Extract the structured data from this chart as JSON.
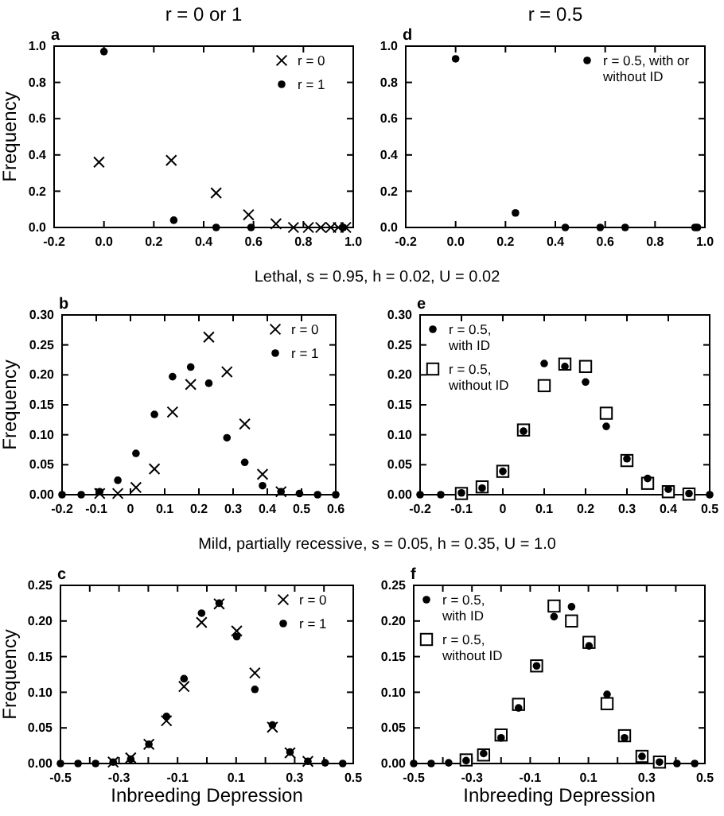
{
  "chart_data": [
    {
      "type": "scatter",
      "title": "r = 0 or 1",
      "annotations": [
        "a"
      ],
      "xlabel": "Lethal, s = 0.95, h = 0.02, U = 0.02",
      "ylabel": "Frequency",
      "legend": "top right",
      "xlim": [
        -0.2,
        1.0
      ],
      "xticks": [
        {
          "value": -0.2,
          "label": "-0.2"
        },
        {
          "value": 0,
          "label": "0.0"
        },
        {
          "value": 0.2,
          "label": "0.2"
        },
        {
          "value": 0.4,
          "label": "0.4"
        },
        {
          "value": 0.6,
          "label": "0.6"
        },
        {
          "value": 0.8,
          "label": "0.8"
        },
        {
          "value": 1.0,
          "label": "1.0"
        }
      ],
      "ylim": [
        0,
        1.0
      ],
      "yticks": [
        {
          "value": 0,
          "label": "0.0"
        },
        {
          "value": 0.2,
          "label": "0.2"
        },
        {
          "value": 0.4,
          "label": "0.4"
        },
        {
          "value": 0.6,
          "label": "0.6"
        },
        {
          "value": 0.8,
          "label": "0.8"
        },
        {
          "value": 1.0,
          "label": "1.0"
        }
      ],
      "series": [
        {
          "name": "r = 0",
          "color": "#000000",
          "marker": "cross",
          "x": [
            -0.02,
            0.27,
            0.45,
            0.58,
            0.69,
            0.76,
            0.82,
            0.87,
            0.91,
            0.94,
            0.97
          ],
          "values": [
            0.36,
            0.37,
            0.19,
            0.07,
            0.02,
            0,
            0,
            0,
            0,
            0,
            0
          ]
        },
        {
          "name": "r = 1",
          "color": "#000000",
          "marker": "circle",
          "x": [
            0,
            0.28,
            0.45,
            0.59,
            0.96
          ],
          "values": [
            0.97,
            0.04,
            0,
            0,
            0
          ]
        }
      ]
    },
    {
      "type": "scatter",
      "title": "r = 0.5",
      "annotations": [
        "d"
      ],
      "legend": "top right",
      "xlim": [
        -0.2,
        1.0
      ],
      "xticks": [
        {
          "value": -0.2,
          "label": "-0.2"
        },
        {
          "value": 0,
          "label": "0.0"
        },
        {
          "value": 0.2,
          "label": "0.2"
        },
        {
          "value": 0.4,
          "label": "0.4"
        },
        {
          "value": 0.6,
          "label": "0.6"
        },
        {
          "value": 0.8,
          "label": "0.8"
        },
        {
          "value": 1.0,
          "label": "1.0"
        }
      ],
      "ylim": [
        0,
        1.0
      ],
      "yticks": [
        {
          "value": 0,
          "label": "0.0"
        },
        {
          "value": 0.2,
          "label": "0.2"
        },
        {
          "value": 0.4,
          "label": "0.4"
        },
        {
          "value": 0.6,
          "label": "0.6"
        },
        {
          "value": 0.8,
          "label": "0.8"
        },
        {
          "value": 1.0,
          "label": "1.0"
        }
      ],
      "series": [
        {
          "name": "r = 0.5, with or without ID",
          "color": "#000000",
          "marker": "circle",
          "x": [
            0,
            0.24,
            0.44,
            0.58,
            0.68,
            0.96,
            0.97
          ],
          "values": [
            0.93,
            0.08,
            0,
            0,
            0,
            0,
            0
          ]
        }
      ]
    },
    {
      "type": "scatter",
      "annotations": [
        "b"
      ],
      "xlabel": "Mild, partially recessive, s = 0.05, h = 0.35, U = 1.0",
      "ylabel": "Frequency",
      "legend": "top right",
      "xlim": [
        -0.2,
        0.6
      ],
      "xticks": [
        -0.2,
        -0.1,
        0,
        0.1,
        0.2,
        0.3,
        0.4,
        0.5,
        0.6
      ],
      "ylim": [
        0,
        0.3
      ],
      "yticks": [
        {
          "value": 0,
          "label": "0.00"
        },
        {
          "value": 0.05,
          "label": "0.05"
        },
        {
          "value": 0.1,
          "label": "0.10"
        },
        {
          "value": 0.15,
          "label": "0.15"
        },
        {
          "value": 0.2,
          "label": "0.20"
        },
        {
          "value": 0.25,
          "label": "0.25"
        },
        {
          "value": 0.3,
          "label": "0.30"
        }
      ],
      "series": [
        {
          "name": "r = 0",
          "color": "#000000",
          "marker": "cross",
          "x": [
            -0.09,
            -0.037,
            0.016,
            0.07,
            0.123,
            0.176,
            0.229,
            0.282,
            0.334,
            0.386,
            0.44
          ],
          "values": [
            0.002,
            0.002,
            0.012,
            0.043,
            0.138,
            0.184,
            0.263,
            0.205,
            0.118,
            0.034,
            0.005
          ]
        },
        {
          "name": "r = 1",
          "color": "#000000",
          "marker": "circle",
          "x": [
            -0.2,
            -0.144,
            -0.09,
            -0.037,
            0.016,
            0.07,
            0.123,
            0.176,
            0.229,
            0.282,
            0.334,
            0.386,
            0.44,
            0.494,
            0.547,
            0.6
          ],
          "values": [
            0,
            0,
            0.005,
            0.024,
            0.069,
            0.134,
            0.197,
            0.213,
            0.186,
            0.095,
            0.054,
            0.015,
            0.005,
            0.002,
            0,
            0
          ]
        }
      ]
    },
    {
      "type": "scatter",
      "annotations": [
        "e"
      ],
      "legend": "top left",
      "xlim": [
        -0.2,
        0.5
      ],
      "xticks": [
        -0.2,
        -0.1,
        0,
        0.1,
        0.2,
        0.3,
        0.4,
        0.5
      ],
      "ylim": [
        0,
        0.3
      ],
      "yticks": [
        {
          "value": 0,
          "label": "0.00"
        },
        {
          "value": 0.05,
          "label": "0.05"
        },
        {
          "value": 0.1,
          "label": "0.10"
        },
        {
          "value": 0.15,
          "label": "0.15"
        },
        {
          "value": 0.2,
          "label": "0.20"
        },
        {
          "value": 0.25,
          "label": "0.25"
        },
        {
          "value": 0.3,
          "label": "0.30"
        }
      ],
      "series": [
        {
          "name": "r = 0.5, with ID",
          "color": "#000000",
          "marker": "circle",
          "x": [
            -0.2,
            -0.15,
            -0.1,
            -0.05,
            0,
            0.05,
            0.1,
            0.15,
            0.2,
            0.25,
            0.3,
            0.35,
            0.4,
            0.45,
            0.5
          ],
          "values": [
            0,
            0,
            0.003,
            0.011,
            0.039,
            0.106,
            0.219,
            0.214,
            0.188,
            0.114,
            0.06,
            0.027,
            0.009,
            0.002,
            0
          ]
        },
        {
          "name": "r = 0.5, without ID",
          "color": "#000000",
          "marker": "square",
          "x": [
            -0.1,
            -0.05,
            0,
            0.05,
            0.1,
            0.15,
            0.2,
            0.25,
            0.3,
            0.35,
            0.4,
            0.45
          ],
          "values": [
            0.002,
            0.013,
            0.039,
            0.108,
            0.182,
            0.218,
            0.214,
            0.136,
            0.057,
            0.019,
            0.005,
            0.001
          ]
        }
      ]
    },
    {
      "type": "scatter",
      "annotations": [
        "c"
      ],
      "xlabel": "Inbreeding Depression",
      "ylabel": "Frequency",
      "legend": "top right",
      "xlim": [
        -0.5,
        0.5
      ],
      "xticks": [
        -0.5,
        {
          "value": -0.4,
          "label": null
        },
        -0.3,
        {
          "value": -0.2,
          "label": null
        },
        -0.1,
        {
          "value": 0,
          "label": null
        },
        0.1,
        {
          "value": 0.2,
          "label": null
        },
        0.3,
        {
          "value": 0.4,
          "label": null
        },
        0.5
      ],
      "ylim": [
        0,
        0.25
      ],
      "yticks": [
        {
          "value": 0,
          "label": "0.00"
        },
        {
          "value": 0.05,
          "label": "0.05"
        },
        {
          "value": 0.1,
          "label": "0.10"
        },
        {
          "value": 0.15,
          "label": "0.15"
        },
        {
          "value": 0.2,
          "label": "0.20"
        },
        {
          "value": 0.25,
          "label": "0.25"
        }
      ],
      "series": [
        {
          "name": "r = 0",
          "color": "#000000",
          "marker": "cross",
          "x": [
            -0.32,
            -0.26,
            -0.198,
            -0.138,
            -0.078,
            -0.018,
            0.042,
            0.102,
            0.164,
            0.224,
            0.284,
            0.345
          ],
          "values": [
            0.002,
            0.008,
            0.027,
            0.06,
            0.108,
            0.198,
            0.224,
            0.186,
            0.127,
            0.051,
            0.015,
            0.003
          ]
        },
        {
          "name": "r = 1",
          "color": "#000000",
          "marker": "circle",
          "x": [
            -0.5,
            -0.44,
            -0.38,
            -0.32,
            -0.26,
            -0.198,
            -0.138,
            -0.078,
            -0.018,
            0.042,
            0.102,
            0.164,
            0.224,
            0.284,
            0.345,
            0.404,
            0.464
          ],
          "values": [
            0,
            0,
            0,
            0.002,
            0.006,
            0.027,
            0.066,
            0.119,
            0.211,
            0.225,
            0.178,
            0.104,
            0.054,
            0.016,
            0.003,
            0.001,
            0
          ]
        }
      ]
    },
    {
      "type": "scatter",
      "annotations": [
        "f"
      ],
      "xlabel": "Inbreeding Depression",
      "legend": "top left",
      "xlim": [
        -0.5,
        0.5
      ],
      "xticks": [
        -0.5,
        {
          "value": -0.4,
          "label": null
        },
        -0.3,
        {
          "value": -0.2,
          "label": null
        },
        -0.1,
        {
          "value": 0,
          "label": null
        },
        0.1,
        {
          "value": 0.2,
          "label": null
        },
        0.3,
        {
          "value": 0.4,
          "label": null
        },
        0.5
      ],
      "ylim": [
        0,
        0.25
      ],
      "yticks": [
        {
          "value": 0,
          "label": "0.00"
        },
        {
          "value": 0.05,
          "label": "0.05"
        },
        {
          "value": 0.1,
          "label": "0.10"
        },
        {
          "value": 0.15,
          "label": "0.15"
        },
        {
          "value": 0.2,
          "label": "0.20"
        },
        {
          "value": 0.25,
          "label": "0.25"
        }
      ],
      "series": [
        {
          "name": "r = 0.5, with ID",
          "color": "#000000",
          "marker": "circle",
          "x": [
            -0.5,
            -0.44,
            -0.38,
            -0.32,
            -0.26,
            -0.2,
            -0.14,
            -0.078,
            -0.018,
            0.042,
            0.102,
            0.164,
            0.224,
            0.284,
            0.344,
            0.404,
            0.465
          ],
          "values": [
            0,
            0,
            0.001,
            0.004,
            0.014,
            0.036,
            0.078,
            0.137,
            0.206,
            0.22,
            0.165,
            0.097,
            0.036,
            0.01,
            0.002,
            0,
            0
          ]
        },
        {
          "name": "r = 0.5, without ID",
          "color": "#000000",
          "marker": "square",
          "x": [
            -0.32,
            -0.26,
            -0.2,
            -0.14,
            -0.078,
            -0.018,
            0.042,
            0.102,
            0.164,
            0.224,
            0.284,
            0.344
          ],
          "values": [
            0.005,
            0.012,
            0.04,
            0.083,
            0.137,
            0.221,
            0.2,
            0.17,
            0.084,
            0.039,
            0.01,
            0.002
          ]
        }
      ]
    }
  ]
}
